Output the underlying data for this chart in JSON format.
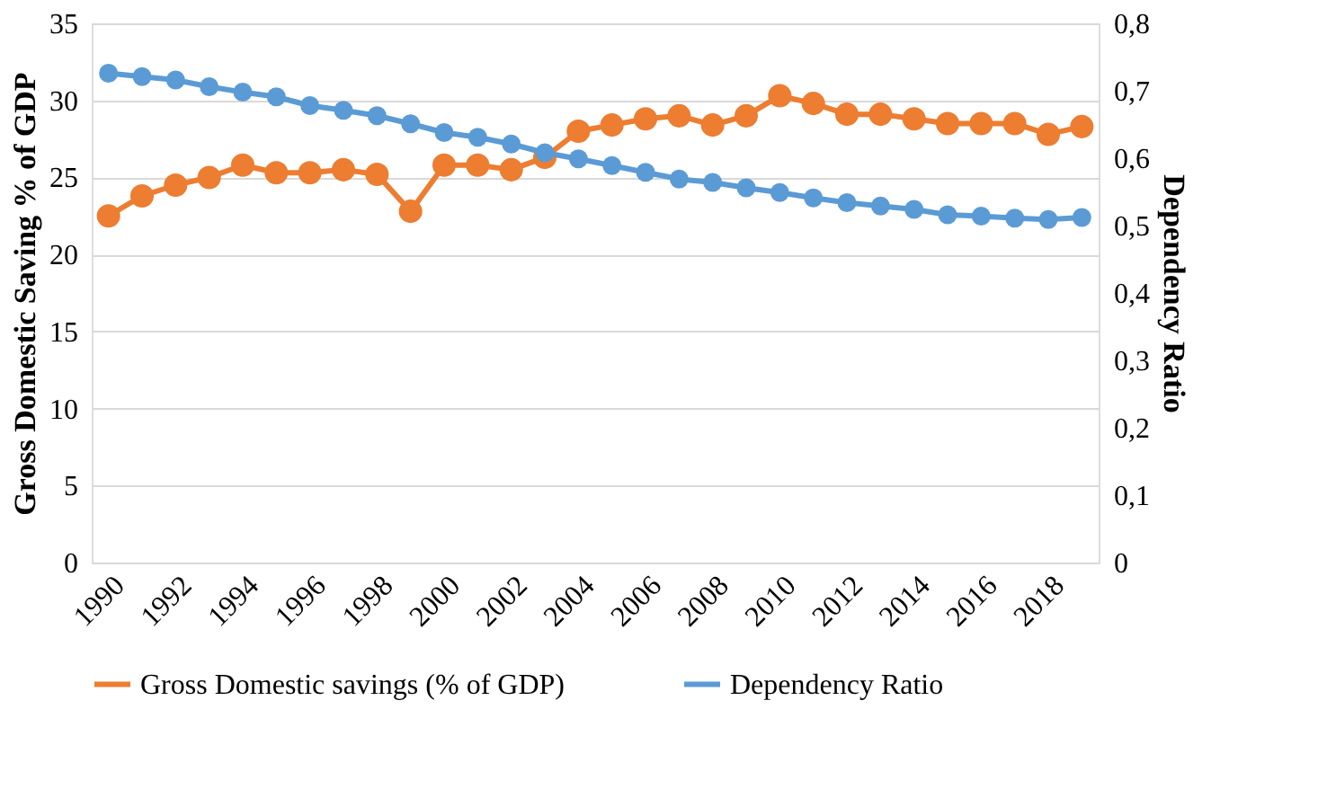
{
  "chart_data": {
    "type": "line",
    "ylabel": "Gross Domestic Saving % of GDP",
    "y2label": "Dependency Ratio",
    "categories": [
      "1990",
      null,
      "1992",
      null,
      "1994",
      null,
      "1996",
      null,
      "1998",
      null,
      "2000",
      null,
      "2002",
      null,
      "2004",
      null,
      "2006",
      null,
      "2008",
      null,
      "2010",
      null,
      "2012",
      null,
      "2014",
      null,
      "2016",
      null,
      "2018",
      null
    ],
    "series": [
      {
        "name": "Gross Domestic savings (% of GDP)",
        "color": "#ed7d31",
        "values": [
          22.5,
          23.8,
          24.5,
          25.0,
          25.8,
          25.3,
          25.3,
          25.5,
          25.2,
          22.8,
          25.8,
          25.8,
          25.5,
          26.3,
          28.0,
          28.4,
          28.8,
          29.0,
          28.4,
          29.0,
          30.3,
          29.8,
          29.1,
          29.1,
          28.8,
          28.5,
          28.5,
          28.5,
          27.8,
          28.3
        ]
      },
      {
        "name": "Dependency Ratio",
        "color": "#5b9bd5",
        "axis": "y2",
        "values": [
          0.726,
          0.721,
          0.716,
          0.706,
          0.698,
          0.691,
          0.678,
          0.671,
          0.663,
          0.651,
          0.638,
          0.631,
          0.621,
          0.608,
          0.599,
          0.589,
          0.579,
          0.569,
          0.564,
          0.556,
          0.549,
          0.541,
          0.534,
          0.529,
          0.524,
          0.516,
          0.514,
          0.511,
          0.509,
          0.512
        ]
      }
    ],
    "ylim": [
      0,
      35
    ],
    "yticks": [
      0,
      5,
      10,
      15,
      20,
      25,
      30,
      35
    ],
    "y2lim": [
      0,
      0.8
    ],
    "y2ticks": [
      0,
      {
        "value": 0.1,
        "label": "0,1"
      },
      {
        "value": 0.2,
        "label": "0,2"
      },
      {
        "value": 0.3,
        "label": "0,3"
      },
      {
        "value": 0.4,
        "label": "0,4"
      },
      {
        "value": 0.5,
        "label": "0,5"
      },
      {
        "value": 0.6,
        "label": "0,6"
      },
      {
        "value": 0.7,
        "label": "0,7"
      },
      {
        "value": 0.8,
        "label": "0,8"
      }
    ],
    "grid": "y",
    "legend": "bottom",
    "marker": "circle",
    "line_style": "solid"
  }
}
